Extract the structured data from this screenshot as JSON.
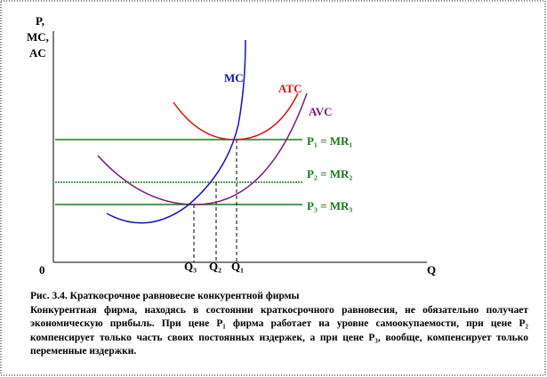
{
  "axes": {
    "y_label_lines": [
      "P,",
      "MC,",
      "AC"
    ],
    "origin": "0",
    "x_label": "Q"
  },
  "curves": {
    "mc": "MC",
    "atc": "ATC",
    "avc": "AVC"
  },
  "price_lines": [
    "P₁ = MR₁",
    "P₂ = MR₂",
    "P₃ = MR₃"
  ],
  "quantities": [
    "Q₃",
    "Q₂",
    "Q₁"
  ],
  "caption": {
    "title": "Рис. 3.4. Краткосрочное равновесие конкурентной фирмы",
    "text": "Конкурентная фирма, находясь в состоянии краткосрочного равновесия, не обязательно получает экономическую прибыль. При цене P₁ фирма работает на уровне самоокупаемости, при цене P₂ компенсирует только часть своих постоянных издержек, а при цене P₃, вообще, компенсирует только переменные издержки."
  }
}
